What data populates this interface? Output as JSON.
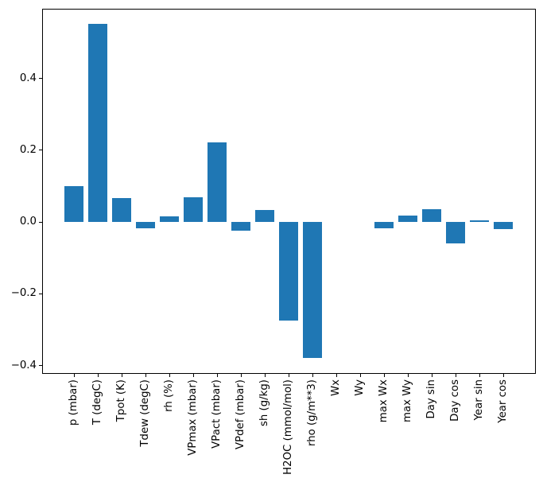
{
  "figure": {
    "background": "#ffffff",
    "axis_color": "#000000",
    "title": ""
  },
  "chart_data": {
    "type": "bar",
    "title": "",
    "xlabel": "",
    "ylabel": "",
    "grid": false,
    "legend_position": "none",
    "bar_color": "#1f77b4",
    "xtick_rotation": 90,
    "categories": [
      "p (mbar)",
      "T (degC)",
      "Tpot (K)",
      "Tdew (degC)",
      "rh (%)",
      "VPmax (mbar)",
      "VPact (mbar)",
      "VPdef (mbar)",
      "sh (g/kg)",
      "H2OC (mmol/mol)",
      "rho (g/m**3)",
      "Wx",
      "Wy",
      "max Wx",
      "max Wy",
      "Day sin",
      "Day cos",
      "Year sin",
      "Year cos"
    ],
    "values": [
      0.1,
      0.552,
      0.067,
      -0.018,
      0.015,
      0.069,
      0.222,
      -0.024,
      0.034,
      -0.275,
      -0.379,
      0.0,
      0.0,
      -0.018,
      0.017,
      0.036,
      -0.06,
      0.004,
      -0.019
    ],
    "ylim": [
      -0.423,
      0.594
    ],
    "yticks": [
      0.4,
      0.2,
      0.0,
      -0.2,
      -0.4
    ],
    "ytick_labels": [
      "0.4",
      "0.2",
      "0.0",
      "−0.2",
      "−0.4"
    ]
  }
}
